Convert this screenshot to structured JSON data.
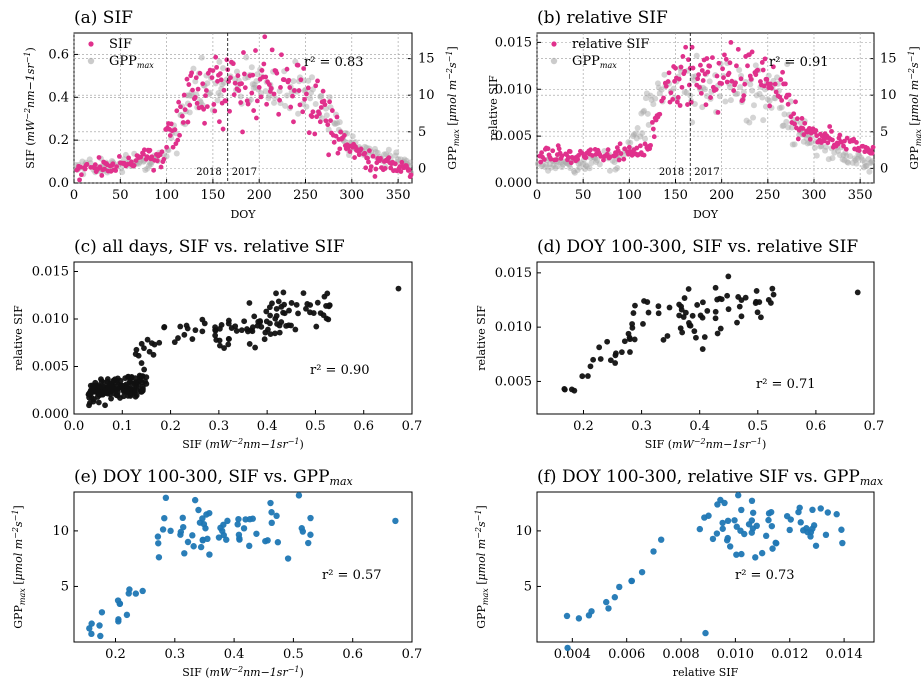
{
  "figure": {
    "colors": {
      "sif": "#e0318c",
      "gpp": "#a9a9a9",
      "black": "#111111",
      "blue": "#1f77b4"
    }
  },
  "chart_data": [
    {
      "id": "a",
      "type": "scatter",
      "title": "(a) SIF",
      "xlabel": "DOY",
      "ylabel": "SIF (mW⁻²nm−1sr⁻¹)",
      "y2label": "GPPmax [μmol m⁻²s⁻¹]",
      "xlim": [
        0,
        365
      ],
      "ylim": [
        0,
        0.7
      ],
      "y2lim": [
        -2,
        18.5
      ],
      "xticks": [
        "0",
        "50",
        "100",
        "150",
        "200",
        "250",
        "300",
        "350"
      ],
      "yticks": [
        "0.0",
        "0.2",
        "0.4",
        "0.6"
      ],
      "y2ticks": [
        "0",
        "5",
        "10",
        "15"
      ],
      "grid": true,
      "legend": "top-left",
      "legend_entries": [
        "SIF",
        "GPPmax"
      ],
      "annotations": {
        "r2": "r² = 0.83",
        "left_year": "2018",
        "right_year": "2017"
      },
      "divider_x": 166
    },
    {
      "id": "b",
      "type": "scatter",
      "title": "(b) relative SIF",
      "xlabel": "DOY",
      "ylabel": "relative SIF",
      "y2label": "GPPmax [μmol m⁻²s⁻¹]",
      "xlim": [
        0,
        365
      ],
      "ylim": [
        0,
        0.016
      ],
      "y2lim": [
        -2,
        18.5
      ],
      "xticks": [
        "0",
        "50",
        "100",
        "150",
        "200",
        "250",
        "300",
        "350"
      ],
      "yticks": [
        "0.000",
        "0.005",
        "0.010",
        "0.015"
      ],
      "y2ticks": [
        "0",
        "5",
        "10",
        "15"
      ],
      "grid": true,
      "legend": "top-left",
      "legend_entries": [
        "relative SIF",
        "GPPmax"
      ],
      "annotations": {
        "r2": "r² = 0.91",
        "left_year": "2018",
        "right_year": "2017"
      },
      "divider_x": 166
    },
    {
      "id": "c",
      "type": "scatter",
      "title": "(c) all days, SIF vs. relative SIF",
      "xlabel": "SIF (mW⁻²nm−1sr⁻¹)",
      "ylabel": "relative SIF",
      "xlim": [
        0,
        0.7
      ],
      "ylim": [
        0,
        0.016
      ],
      "xticks": [
        "0.0",
        "0.1",
        "0.2",
        "0.3",
        "0.4",
        "0.5",
        "0.6",
        "0.7"
      ],
      "yticks": [
        "0.000",
        "0.005",
        "0.010",
        "0.015"
      ],
      "annotations": {
        "r2": "r² = 0.90"
      }
    },
    {
      "id": "d",
      "type": "scatter",
      "title": "(d) DOY 100-300, SIF vs. relative SIF",
      "xlabel": "SIF (mW⁻²nm−1sr⁻¹)",
      "ylabel": "relative SIF",
      "xlim": [
        0.12,
        0.7
      ],
      "ylim": [
        0.002,
        0.016
      ],
      "xticks": [
        "0.2",
        "0.3",
        "0.4",
        "0.5",
        "0.6",
        "0.7"
      ],
      "yticks": [
        "0.005",
        "0.010",
        "0.015"
      ],
      "annotations": {
        "r2": "r² = 0.71"
      }
    },
    {
      "id": "e",
      "type": "scatter",
      "title": "(e) DOY 100-300, SIF vs. GPPmax",
      "xlabel": "SIF (mW⁻²nm−1sr⁻¹)",
      "ylabel": "GPPmax [μmol m⁻²s⁻¹]",
      "xlim": [
        0.13,
        0.7
      ],
      "ylim": [
        0,
        13.5
      ],
      "xticks": [
        "0.2",
        "0.3",
        "0.4",
        "0.5",
        "0.6",
        "0.7"
      ],
      "yticks": [
        "5",
        "10"
      ],
      "annotations": {
        "r2": "r² = 0.57"
      }
    },
    {
      "id": "f",
      "type": "scatter",
      "title": "(f) DOY 100-300, relative SIF vs. GPPmax",
      "xlabel": "relative SIF",
      "ylabel": "GPPmax [μmol m⁻²s⁻¹]",
      "xlim": [
        0.0027,
        0.0151
      ],
      "ylim": [
        0,
        13.5
      ],
      "xticks": [
        "0.004",
        "0.006",
        "0.008",
        "0.010",
        "0.012",
        "0.014"
      ],
      "yticks": [
        "5",
        "10"
      ],
      "annotations": {
        "r2": "r² = 0.73"
      }
    }
  ]
}
